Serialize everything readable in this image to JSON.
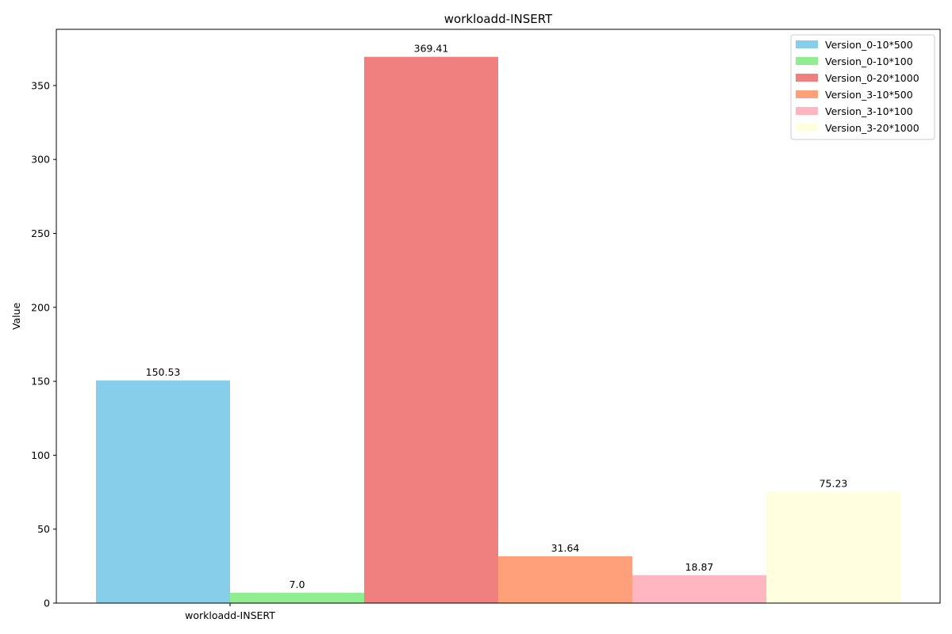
{
  "chart_data": {
    "type": "bar",
    "title": "workloadd-INSERT",
    "xlabel": "",
    "ylabel": "Value",
    "categories": [
      "workloadd-INSERT"
    ],
    "ylim": [
      0,
      388
    ],
    "yticks": [
      0,
      50,
      100,
      150,
      200,
      250,
      300,
      350
    ],
    "grid": false,
    "legend_position": "top-right",
    "series": [
      {
        "name": "Version_0-10*500",
        "values": [
          150.53
        ],
        "label": "150.53",
        "color": "#87ceeb"
      },
      {
        "name": "Version_0-10*100",
        "values": [
          7.0
        ],
        "label": "7.0",
        "color": "#90ee90"
      },
      {
        "name": "Version_0-20*1000",
        "values": [
          369.41
        ],
        "label": "369.41",
        "color": "#f08080"
      },
      {
        "name": "Version_3-10*500",
        "values": [
          31.64
        ],
        "label": "31.64",
        "color": "#ffa07a"
      },
      {
        "name": "Version_3-10*100",
        "values": [
          18.87
        ],
        "label": "18.87",
        "color": "#ffb6c1"
      },
      {
        "name": "Version_3-20*1000",
        "values": [
          75.23
        ],
        "label": "75.23",
        "color": "#ffffe0"
      }
    ]
  }
}
